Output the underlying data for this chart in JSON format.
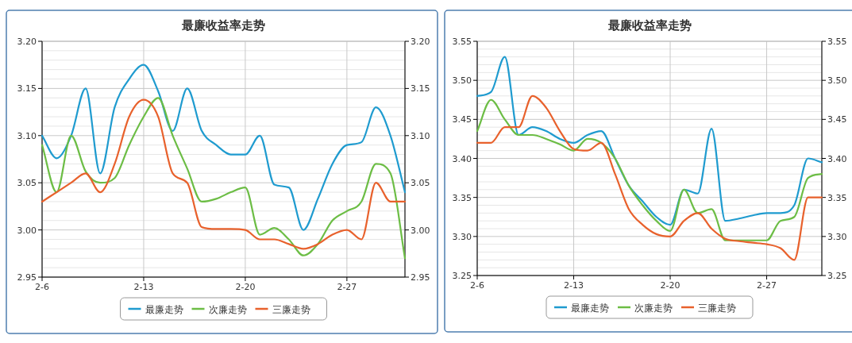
{
  "chart_data": [
    {
      "type": "line",
      "title": "最廉收益率走势",
      "x": [
        "--02-06",
        "--02-07",
        "--02-08",
        "--02-09",
        "--02-10",
        "--02-11",
        "--02-12",
        "--02-13",
        "--02-14",
        "--02-15",
        "--02-16",
        "--02-17",
        "--02-18",
        "--02-19",
        "--02-20",
        "--02-21",
        "--02-22",
        "--02-23",
        "--02-24",
        "--02-25",
        "--02-26",
        "--02-27",
        "--02-28",
        "--03-01",
        "--03-02",
        "--03-03"
      ],
      "series": [
        {
          "name": "最廉走势",
          "color": "#1f9bcf",
          "values": [
            3.1,
            3.076,
            3.1,
            3.15,
            3.06,
            3.13,
            3.16,
            3.175,
            3.147,
            3.105,
            3.15,
            3.105,
            3.09,
            3.08,
            3.08,
            3.1,
            3.048,
            3.045,
            3.0,
            3.033,
            3.07,
            3.09,
            3.093,
            3.13,
            3.1,
            3.04
          ]
        },
        {
          "name": "次廉走势",
          "color": "#6cbd45",
          "values": [
            3.09,
            3.04,
            3.1,
            3.062,
            3.05,
            3.055,
            3.09,
            3.12,
            3.14,
            3.1,
            3.065,
            3.03,
            3.033,
            3.04,
            3.045,
            2.995,
            3.002,
            2.99,
            2.973,
            2.985,
            3.01,
            3.02,
            3.03,
            3.07,
            3.06,
            2.97
          ]
        },
        {
          "name": "三廉走势",
          "color": "#e8612c",
          "values": [
            3.03,
            3.04,
            3.05,
            3.06,
            3.04,
            3.07,
            3.12,
            3.138,
            3.12,
            3.06,
            3.05,
            3.003,
            3.001,
            3.001,
            3.0,
            2.99,
            2.99,
            2.985,
            2.98,
            2.985,
            2.995,
            3.0,
            2.99,
            3.05,
            3.03,
            3.03
          ]
        }
      ],
      "xlim": [
        "--02-06",
        "--03-03"
      ],
      "xticks": [
        {
          "value": "--02-06",
          "label": "2-6"
        },
        {
          "value": "--02-13",
          "label": "2-13"
        },
        {
          "value": "--02-20",
          "label": "2-20"
        },
        {
          "value": "--02-27",
          "label": "2-27"
        }
      ],
      "ylim": [
        2.95,
        3.2
      ],
      "yticks": [
        2.95,
        {
          "value": 3.0,
          "label": "3.00"
        },
        3.05,
        {
          "value": 3.1,
          "label": "3.10"
        },
        3.15,
        {
          "value": 3.2,
          "label": "3.20"
        }
      ],
      "y2lim": [
        2.95,
        3.2
      ],
      "y2ticks": [
        2.95,
        {
          "value": 3.0,
          "label": "3.00"
        },
        3.05,
        {
          "value": 3.1,
          "label": "3.10"
        },
        3.15,
        {
          "value": 3.2,
          "label": "3.20"
        }
      ],
      "grid": true,
      "legend": "bottom",
      "marker": "none",
      "line_style": "solid"
    },
    {
      "type": "line",
      "title": "最廉收益率走势",
      "x": [
        "--02-06",
        "--02-07",
        "--02-08",
        "--02-09",
        "--02-10",
        "--02-11",
        "--02-12",
        "--02-13",
        "--02-14",
        "--02-15",
        "--02-16",
        "--02-17",
        "--02-18",
        "--02-19",
        "--02-20",
        "--02-21",
        "--02-22",
        "--02-23",
        "--02-24",
        "--02-25",
        "--02-26",
        "--02-27",
        "--02-28",
        "--03-01",
        "--03-02",
        "--03-03"
      ],
      "series": [
        {
          "name": "最廉走势",
          "color": "#1f9bcf",
          "values": [
            3.48,
            3.485,
            3.53,
            3.43,
            3.44,
            3.435,
            3.425,
            3.42,
            3.43,
            3.435,
            3.4,
            3.365,
            3.345,
            3.325,
            3.315,
            3.36,
            3.355,
            3.438,
            3.32,
            3.323,
            3.327,
            3.33,
            3.33,
            3.34,
            3.4,
            3.395
          ]
        },
        {
          "name": "次廉走势",
          "color": "#6cbd45",
          "values": [
            3.435,
            3.475,
            3.45,
            3.43,
            3.43,
            3.425,
            3.418,
            3.41,
            3.425,
            3.42,
            3.4,
            3.365,
            3.34,
            3.32,
            3.307,
            3.36,
            3.33,
            3.335,
            3.295,
            3.295,
            3.295,
            3.295,
            3.32,
            3.325,
            3.375,
            3.38
          ]
        },
        {
          "name": "三廉走势",
          "color": "#e8612c",
          "values": [
            3.42,
            3.42,
            3.44,
            3.44,
            3.48,
            3.465,
            3.435,
            3.412,
            3.41,
            3.42,
            3.38,
            3.335,
            3.315,
            3.303,
            3.3,
            3.32,
            3.33,
            3.31,
            3.297,
            3.294,
            3.292,
            3.29,
            3.285,
            3.27,
            3.35,
            3.35
          ]
        }
      ],
      "xlim": [
        "--02-06",
        "--03-03"
      ],
      "xticks": [
        {
          "value": "--02-06",
          "label": "2-6"
        },
        {
          "value": "--02-13",
          "label": "2-13"
        },
        {
          "value": "--02-20",
          "label": "2-20"
        },
        {
          "value": "--02-27",
          "label": "2-27"
        }
      ],
      "ylim": [
        3.25,
        3.55
      ],
      "yticks": [
        3.25,
        {
          "value": 3.3,
          "label": "3.30"
        },
        3.35,
        {
          "value": 3.4,
          "label": "3.40"
        },
        3.45,
        {
          "value": 3.5,
          "label": "3.50"
        },
        3.55
      ],
      "y2lim": [
        3.25,
        3.55
      ],
      "y2ticks": [
        3.25,
        {
          "value": 3.3,
          "label": "3.30"
        },
        3.35,
        {
          "value": 3.4,
          "label": "3.40"
        },
        3.45,
        {
          "value": 3.5,
          "label": "3.50"
        },
        3.55
      ],
      "grid": true,
      "legend": "bottom",
      "marker": "none",
      "line_style": "solid"
    }
  ]
}
